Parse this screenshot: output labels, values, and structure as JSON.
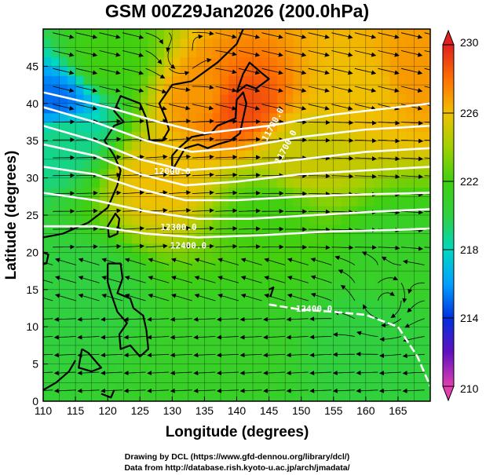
{
  "chart_data": {
    "type": "heatmap",
    "title": "GSM 00Z29Jan2026 (200.0hPa)",
    "xlabel": "Longitude (degrees)",
    "ylabel": "Latitude  (degrees)",
    "xlim": [
      110,
      170
    ],
    "ylim": [
      0,
      50
    ],
    "xticks": [
      "110",
      "115",
      "120",
      "125",
      "130",
      "135",
      "140",
      "145",
      "150",
      "155",
      "160",
      "165"
    ],
    "yticks": [
      "0",
      "5",
      "10",
      "15",
      "20",
      "25",
      "30",
      "35",
      "40",
      "45"
    ],
    "colorbar": {
      "range": [
        210,
        230
      ],
      "ticks": [
        "230",
        "226",
        "222",
        "218",
        "214",
        "210"
      ],
      "colors": [
        "#e040b0",
        "#6010c0",
        "#0030e0",
        "#00a0ff",
        "#00d8c0",
        "#30d040",
        "#40d010",
        "#a0d000",
        "#f0c000",
        "#ff7000",
        "#e02020"
      ]
    },
    "field_anchors": [
      {
        "lon": 112,
        "lat": 40,
        "value": 215
      },
      {
        "lon": 113,
        "lat": 36,
        "value": 219
      },
      {
        "lon": 140,
        "lat": 40,
        "value": 229
      },
      {
        "lon": 135,
        "lat": 41,
        "value": 227
      },
      {
        "lon": 160,
        "lat": 42,
        "value": 226
      },
      {
        "lon": 168,
        "lat": 44,
        "value": 227
      },
      {
        "lon": 128,
        "lat": 30,
        "value": 226
      },
      {
        "lon": 150,
        "lat": 33,
        "value": 225
      },
      {
        "lon": 120,
        "lat": 46,
        "value": 222
      },
      {
        "lon": 145,
        "lat": 25,
        "value": 222
      },
      {
        "lon": 115,
        "lat": 15,
        "value": 220
      },
      {
        "lon": 140,
        "lat": 8,
        "value": 221
      },
      {
        "lon": 160,
        "lat": 8,
        "value": 220
      },
      {
        "lon": 165,
        "lat": 20,
        "value": 221
      }
    ],
    "contours": [
      {
        "label": "",
        "points": [
          [
            110,
            41.5
          ],
          [
            120,
            39.5
          ],
          [
            128,
            37.5
          ],
          [
            135,
            36
          ],
          [
            145,
            37
          ],
          [
            155,
            38.5
          ],
          [
            165,
            39.5
          ],
          [
            170,
            40
          ]
        ]
      },
      {
        "label": "",
        "points": [
          [
            110,
            39.5
          ],
          [
            118,
            37.5
          ],
          [
            126,
            35
          ],
          [
            133,
            33.5
          ],
          [
            140,
            34
          ],
          [
            150,
            35.5
          ],
          [
            160,
            36.5
          ],
          [
            170,
            37
          ]
        ]
      },
      {
        "label": "",
        "points": [
          [
            110,
            37
          ],
          [
            118,
            35
          ],
          [
            125,
            32.5
          ],
          [
            132,
            31
          ],
          [
            140,
            31.5
          ],
          [
            150,
            32.5
          ],
          [
            160,
            33.5
          ],
          [
            170,
            34
          ]
        ]
      },
      {
        "label": "",
        "points": [
          [
            110,
            34.5
          ],
          [
            118,
            33
          ],
          [
            125,
            30.5
          ],
          [
            132,
            29
          ],
          [
            140,
            29.5
          ],
          [
            150,
            30.5
          ],
          [
            160,
            31
          ],
          [
            170,
            31.5
          ]
        ]
      },
      {
        "label": "",
        "points": [
          [
            110,
            31.5
          ],
          [
            118,
            30.5
          ],
          [
            125,
            28.5
          ],
          [
            132,
            27
          ],
          [
            140,
            27
          ],
          [
            150,
            27.5
          ],
          [
            160,
            27.8
          ],
          [
            170,
            28
          ]
        ]
      },
      {
        "label": "",
        "points": [
          [
            110,
            28
          ],
          [
            118,
            27
          ],
          [
            126,
            25.5
          ],
          [
            134,
            24.5
          ],
          [
            142,
            24.5
          ],
          [
            152,
            25
          ],
          [
            162,
            25.5
          ],
          [
            170,
            25.8
          ]
        ]
      },
      {
        "label": "",
        "points": [
          [
            110,
            23.5
          ],
          [
            118,
            23.5
          ],
          [
            126,
            22.5
          ],
          [
            134,
            22
          ],
          [
            144,
            22.3
          ],
          [
            154,
            22.8
          ],
          [
            164,
            23
          ],
          [
            170,
            23.2
          ]
        ]
      },
      {
        "label": "11700.0",
        "lx": 146,
        "ly": 37,
        "rot": -62
      },
      {
        "label": "11700.0",
        "lx": 148,
        "ly": 34,
        "rot": -62
      },
      {
        "label": "12000.0",
        "lx": 130,
        "ly": 30.5,
        "rot": 0
      },
      {
        "label": "12300.0",
        "lx": 131,
        "ly": 23,
        "rot": 0
      },
      {
        "label": "12400.0",
        "lx": 132.5,
        "ly": 20.5,
        "rot": 0
      },
      {
        "label": "12400.0",
        "lx": 152,
        "ly": 12,
        "rot": 0
      }
    ],
    "tropical_contour": [
      [
        145,
        13
      ],
      [
        150,
        12.3
      ],
      [
        155,
        12
      ],
      [
        160,
        11.6
      ],
      [
        165,
        10
      ],
      [
        168,
        6
      ],
      [
        170,
        2
      ]
    ],
    "credits": [
      "Drawing by DCL (https://www.gfd-dennou.org/library/dcl/)",
      "Data from http://database.rish.kyoto-u.ac.jp/arch/jmadata/"
    ]
  }
}
